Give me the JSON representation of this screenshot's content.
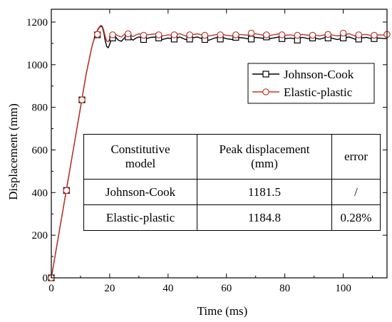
{
  "chart_data": {
    "type": "line",
    "title": "",
    "xlabel": "Time (ms)",
    "ylabel": "Displacement (mm)",
    "xlim": [
      0,
      115
    ],
    "ylim": [
      0,
      1260
    ],
    "xticks": [
      0,
      20,
      40,
      60,
      80,
      100
    ],
    "yticks": [
      0,
      200,
      400,
      600,
      800,
      1000,
      1200
    ],
    "grid": false,
    "legend_position": "top-right",
    "series": [
      {
        "name": "Johnson-Cook",
        "color": "#000000",
        "marker": "square",
        "x": [
          0,
          2,
          4,
          6,
          8,
          10,
          12,
          14,
          15,
          16,
          16.5,
          17,
          17.5,
          18,
          18.5,
          19,
          19.5,
          20,
          20.5,
          21,
          21.5,
          22,
          23,
          24,
          25,
          26,
          27,
          28,
          29,
          30,
          32,
          34,
          36,
          38,
          40,
          42,
          44,
          46,
          48,
          50,
          52,
          54,
          56,
          58,
          60,
          62,
          64,
          66,
          68,
          70,
          72,
          74,
          76,
          78,
          80,
          82,
          84,
          86,
          88,
          90,
          92,
          94,
          96,
          98,
          100,
          102,
          104,
          106,
          108,
          110,
          112,
          115
        ],
        "y": [
          0,
          160,
          320,
          480,
          640,
          800,
          960,
          1090,
          1135,
          1165,
          1175,
          1181.5,
          1175,
          1150,
          1110,
          1085,
          1080,
          1095,
          1120,
          1135,
          1138,
          1130,
          1115,
          1110,
          1125,
          1135,
          1125,
          1115,
          1125,
          1130,
          1120,
          1128,
          1130,
          1118,
          1125,
          1120,
          1130,
          1118,
          1125,
          1130,
          1120,
          1115,
          1125,
          1130,
          1122,
          1118,
          1128,
          1125,
          1120,
          1128,
          1125,
          1120,
          1125,
          1130,
          1122,
          1125,
          1120,
          1128,
          1122,
          1125,
          1120,
          1128,
          1125,
          1118,
          1125,
          1130,
          1120,
          1125,
          1128,
          1120,
          1125,
          1122
        ],
        "marker_x": [
          0,
          5.2,
          10.5,
          15.8,
          21,
          26.3,
          31.6,
          36.8,
          42.1,
          47.4,
          52.6,
          57.9,
          63.2,
          68.5,
          73.7,
          79,
          84.3,
          89.5,
          94.8,
          100,
          105.3,
          110.6
        ],
        "marker_y": [
          0,
          410,
          835,
          1140,
          1125,
          1130,
          1118,
          1125,
          1120,
          1120,
          1118,
          1120,
          1128,
          1120,
          1130,
          1122,
          1115,
          1125,
          1125,
          1125,
          1120,
          1122
        ]
      },
      {
        "name": "Elastic-plastic",
        "color": "#c0392b",
        "marker": "circle",
        "x": [
          0,
          2,
          4,
          6,
          8,
          10,
          12,
          14,
          15,
          16,
          16.5,
          17,
          17.5,
          18,
          18.5,
          19,
          19.5,
          20,
          20.5,
          21,
          21.5,
          22,
          23,
          24,
          25,
          26,
          27,
          28,
          29,
          30,
          32,
          34,
          36,
          38,
          40,
          42,
          44,
          46,
          48,
          50,
          52,
          54,
          56,
          58,
          60,
          62,
          64,
          66,
          68,
          70,
          72,
          74,
          76,
          78,
          80,
          82,
          84,
          86,
          88,
          90,
          92,
          94,
          96,
          98,
          100,
          102,
          104,
          106,
          108,
          110,
          112,
          115
        ],
        "y": [
          0,
          160,
          320,
          480,
          640,
          800,
          960,
          1090,
          1138,
          1168,
          1178,
          1184.8,
          1180,
          1160,
          1130,
          1110,
          1108,
          1120,
          1135,
          1145,
          1148,
          1142,
          1135,
          1130,
          1142,
          1148,
          1140,
          1132,
          1140,
          1145,
          1138,
          1142,
          1145,
          1135,
          1140,
          1138,
          1145,
          1135,
          1140,
          1145,
          1138,
          1135,
          1140,
          1145,
          1138,
          1135,
          1142,
          1140,
          1138,
          1145,
          1140,
          1135,
          1140,
          1145,
          1138,
          1140,
          1135,
          1142,
          1138,
          1140,
          1135,
          1142,
          1140,
          1135,
          1140,
          1145,
          1135,
          1140,
          1142,
          1135,
          1140,
          1138
        ],
        "marker_x": [
          0,
          5.2,
          10.5,
          15.8,
          21,
          26.3,
          31.6,
          36.8,
          42.1,
          47.4,
          52.6,
          57.9,
          63.2,
          68.5,
          73.7,
          79,
          84.3,
          89.5,
          94.8,
          100,
          105.3,
          110.6,
          115
        ],
        "marker_y": [
          0,
          410,
          835,
          1142,
          1140,
          1145,
          1138,
          1140,
          1140,
          1140,
          1138,
          1140,
          1140,
          1148,
          1140,
          1140,
          1138,
          1138,
          1142,
          1148,
          1140,
          1138,
          1142
        ]
      }
    ]
  },
  "table": {
    "header": [
      "Constitutive\nmodel",
      "Peak displacement\n(mm)",
      "error"
    ],
    "rows": [
      [
        "Johnson-Cook",
        "1181.5",
        "/"
      ],
      [
        "Elastic-plastic",
        "1184.8",
        "0.28%"
      ]
    ]
  }
}
